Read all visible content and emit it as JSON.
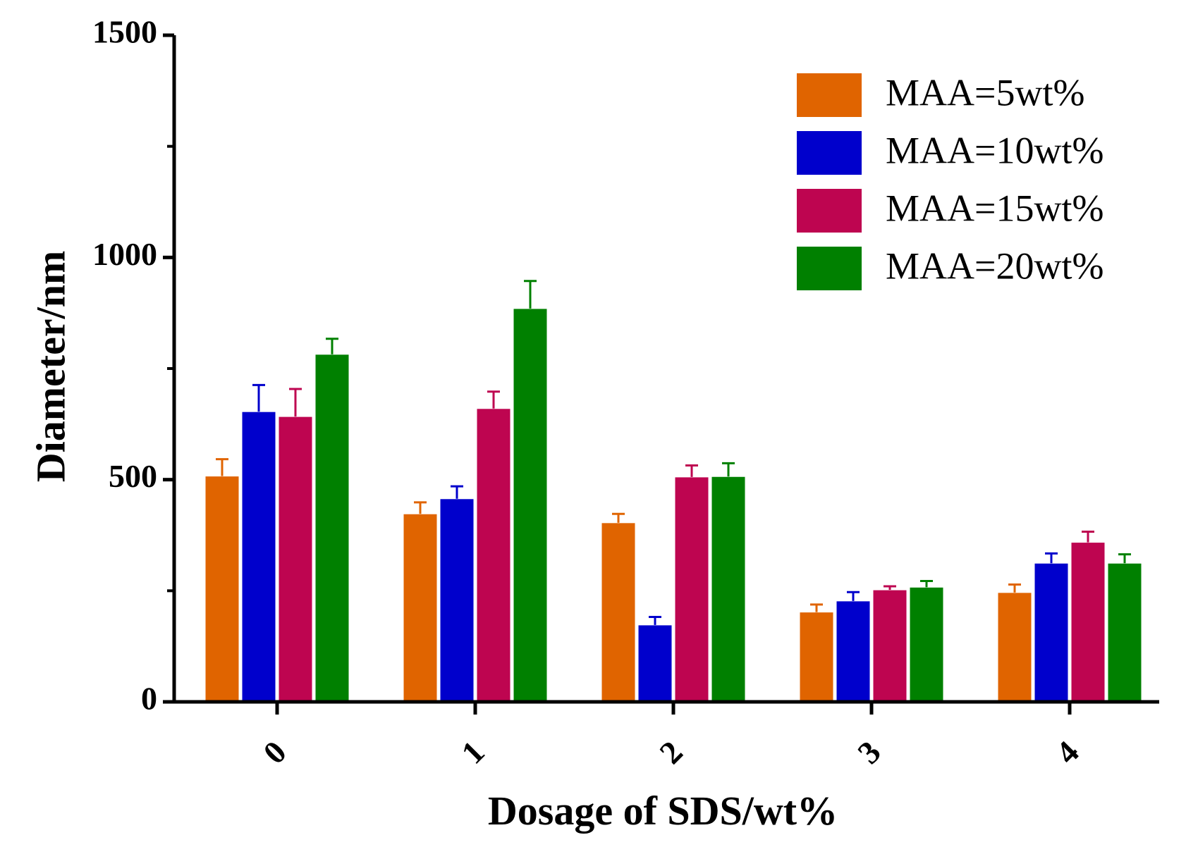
{
  "chart_data": {
    "type": "bar",
    "title": "",
    "xlabel": "Dosage of SDS/wt%",
    "ylabel": "Diameter/nm",
    "categories": [
      "0",
      "1",
      "2",
      "3",
      "4"
    ],
    "ylim": [
      0,
      1500
    ],
    "yticks": [
      0,
      500,
      1000,
      1500
    ],
    "grid": false,
    "legend_position": "top-right",
    "series": [
      {
        "name": "MAA=5wt%",
        "color": "#E06400",
        "values": [
          508,
          423,
          403,
          202,
          246
        ],
        "errors": [
          38,
          26,
          20,
          17,
          18
        ]
      },
      {
        "name": "MAA=10wt%",
        "color": "#0000CC",
        "values": [
          653,
          457,
          173,
          227,
          312
        ],
        "errors": [
          60,
          28,
          18,
          20,
          22
        ]
      },
      {
        "name": "MAA=15wt%",
        "color": "#BE0550",
        "values": [
          642,
          660,
          506,
          252,
          359
        ],
        "errors": [
          62,
          38,
          26,
          8,
          24
        ]
      },
      {
        "name": "MAA=20wt%",
        "color": "#008000",
        "values": [
          782,
          885,
          507,
          258,
          312
        ],
        "errors": [
          35,
          62,
          30,
          14,
          20
        ]
      }
    ]
  }
}
